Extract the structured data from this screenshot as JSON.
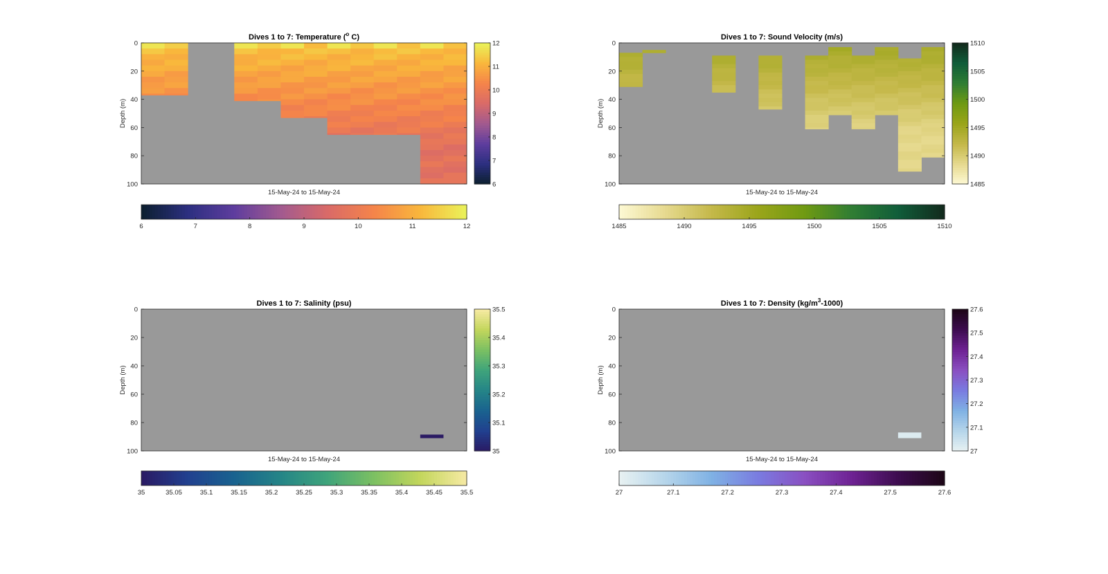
{
  "chart_data": [
    {
      "type": "heatmap",
      "title": "Dives 1 to 7: Temperature (°C)",
      "title_parts": [
        "Dives 1 to 7: Temperature (",
        "o",
        " C)"
      ],
      "ylabel": "Depth (m)",
      "xlabel": "15-May-24 to 15-May-24",
      "ylim": [
        0,
        100
      ],
      "y_ticks": [
        "0",
        "20",
        "40",
        "60",
        "80",
        "100"
      ],
      "clim": [
        6,
        12
      ],
      "colorbar_ticks": [
        "6",
        "7",
        "8",
        "9",
        "10",
        "11",
        "12"
      ],
      "h_colorbar_ticks": [
        "6",
        "7",
        "8",
        "9",
        "10",
        "11",
        "12"
      ],
      "colormap": [
        "#0b1f2e",
        "#2c2f80",
        "#5e3d9e",
        "#a25a8f",
        "#d96a68",
        "#f5844a",
        "#f9b73c",
        "#eaf35a"
      ],
      "nan_color": "#999999",
      "columns": 14,
      "column_max_depth": [
        37,
        37,
        0,
        0,
        41,
        41,
        53,
        53,
        65,
        65,
        65,
        65,
        100,
        100
      ],
      "surface_value": 11.3,
      "deep_value": 9.7
    },
    {
      "type": "heatmap",
      "title": "Dives 1 to 7: Sound Velocity (m/s)",
      "title_parts": [
        "Dives 1 to 7: Sound Velocity (m/s)"
      ],
      "ylabel": "Depth (m)",
      "xlabel": "15-May-24 to 15-May-24",
      "ylim": [
        0,
        100
      ],
      "y_ticks": [
        "0",
        "20",
        "40",
        "60",
        "80",
        "100"
      ],
      "clim": [
        1485,
        1510
      ],
      "colorbar_ticks": [
        "1485",
        "1490",
        "1495",
        "1500",
        "1505",
        "1510"
      ],
      "h_colorbar_ticks": [
        "1485",
        "1490",
        "1495",
        "1500",
        "1505",
        "1510"
      ],
      "colormap": [
        "#fdf9d4",
        "#e6d98e",
        "#c4b849",
        "#9aa51a",
        "#6f9a12",
        "#2f7d33",
        "#105d3a",
        "#122a1c"
      ],
      "nan_color": "#999999",
      "segments": [
        {
          "c0": 0,
          "c1": 1,
          "top": 7,
          "bottom": 31
        },
        {
          "c0": 1,
          "c1": 2,
          "top": 5,
          "bottom": 7
        },
        {
          "c0": 4,
          "c1": 5,
          "top": 9,
          "bottom": 35
        },
        {
          "c0": 6,
          "c1": 7,
          "top": 9,
          "bottom": 47
        },
        {
          "c0": 8,
          "c1": 9,
          "top": 9,
          "bottom": 61
        },
        {
          "c0": 9,
          "c1": 10,
          "top": 3,
          "bottom": 51
        },
        {
          "c0": 10,
          "c1": 11,
          "top": 9,
          "bottom": 61
        },
        {
          "c0": 11,
          "c1": 12,
          "top": 3,
          "bottom": 51
        },
        {
          "c0": 12,
          "c1": 13,
          "top": 11,
          "bottom": 91
        },
        {
          "c0": 13,
          "c1": 14,
          "top": 3,
          "bottom": 81
        }
      ],
      "surface_value": 1494.5,
      "deep_value": 1488.8
    },
    {
      "type": "heatmap",
      "title": "Dives 1 to 7: Salinity (psu)",
      "title_parts": [
        "Dives 1 to 7: Salinity (psu)"
      ],
      "ylabel": "Depth (m)",
      "xlabel": "15-May-24 to 15-May-24",
      "ylim": [
        0,
        100
      ],
      "y_ticks": [
        "0",
        "20",
        "40",
        "60",
        "80",
        "100"
      ],
      "clim": [
        35,
        35.5
      ],
      "colorbar_ticks": [
        "35",
        "35.1",
        "35.2",
        "35.3",
        "35.4",
        "35.5"
      ],
      "h_colorbar_ticks": [
        "35",
        "35.05",
        "35.1",
        "35.15",
        "35.2",
        "35.25",
        "35.3",
        "35.35",
        "35.4",
        "35.45",
        "35.5"
      ],
      "colormap": [
        "#2a1a63",
        "#21408f",
        "#19638f",
        "#258587",
        "#3fa47b",
        "#7cc062",
        "#c3d65c",
        "#f7eaa4"
      ],
      "nan_color": "#999999",
      "segments": [
        {
          "c0": 12,
          "c1": 13,
          "top": 88.5,
          "bottom": 91,
          "value": 35.0
        }
      ]
    },
    {
      "type": "heatmap",
      "title": "Dives 1 to 7: Density (kg/m³-1000)",
      "title_parts": [
        "Dives 1 to 7: Density (kg/m",
        "3",
        "-1000)"
      ],
      "ylabel": "Depth (m)",
      "xlabel": "15-May-24 to 15-May-24",
      "ylim": [
        0,
        100
      ],
      "y_ticks": [
        "0",
        "20",
        "40",
        "60",
        "80",
        "100"
      ],
      "clim": [
        27,
        27.6
      ],
      "colorbar_ticks": [
        "27",
        "27.1",
        "27.2",
        "27.3",
        "27.4",
        "27.5",
        "27.6"
      ],
      "h_colorbar_ticks": [
        "27",
        "27.1",
        "27.2",
        "27.3",
        "27.4",
        "27.5",
        "27.6"
      ],
      "colormap": [
        "#e8f2f2",
        "#b5d5ea",
        "#7fb1e4",
        "#7a7be0",
        "#8a4fc1",
        "#6e2293",
        "#3d0c4f",
        "#1c0616"
      ],
      "nan_color": "#999999",
      "segments": [
        {
          "c0": 12,
          "c1": 13,
          "top": 87,
          "bottom": 91,
          "value": 27.02
        }
      ]
    }
  ]
}
